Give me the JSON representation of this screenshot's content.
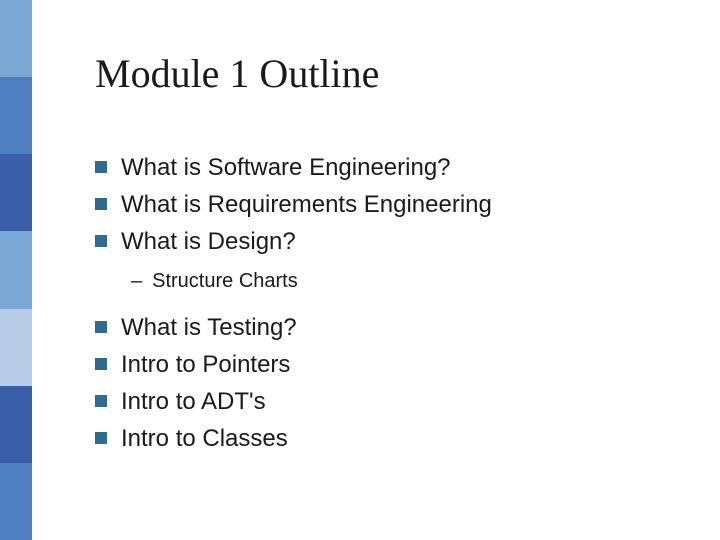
{
  "slide": {
    "title": "Module 1 Outline",
    "background_color": "#ffffff",
    "title_color": "#1a1a1a",
    "title_fontsize": 40,
    "title_fontfamily": "Times New Roman",
    "body_color": "#1a1a1a",
    "body_fontsize": 24,
    "sub_fontsize": 20,
    "bullet_color": "#2f6b8f",
    "bullet_size": 12,
    "sidebar": {
      "width": 32,
      "colors": [
        "#7aa7d4",
        "#4f7fc0",
        "#3a5fa8",
        "#7aa7d4",
        "#b8cce8",
        "#3a5fa8",
        "#4f7fc0"
      ]
    },
    "items": [
      {
        "text": "What is Software Engineering?"
      },
      {
        "text": "What is Requirements Engineering"
      },
      {
        "text": "What is Design?"
      }
    ],
    "sub": {
      "dash": "–",
      "text": "Structure Charts"
    },
    "items2": [
      {
        "text": "What is Testing?"
      },
      {
        "text": "Intro to Pointers"
      },
      {
        "text": "Intro to ADT's"
      },
      {
        "text": "Intro to Classes"
      }
    ]
  }
}
